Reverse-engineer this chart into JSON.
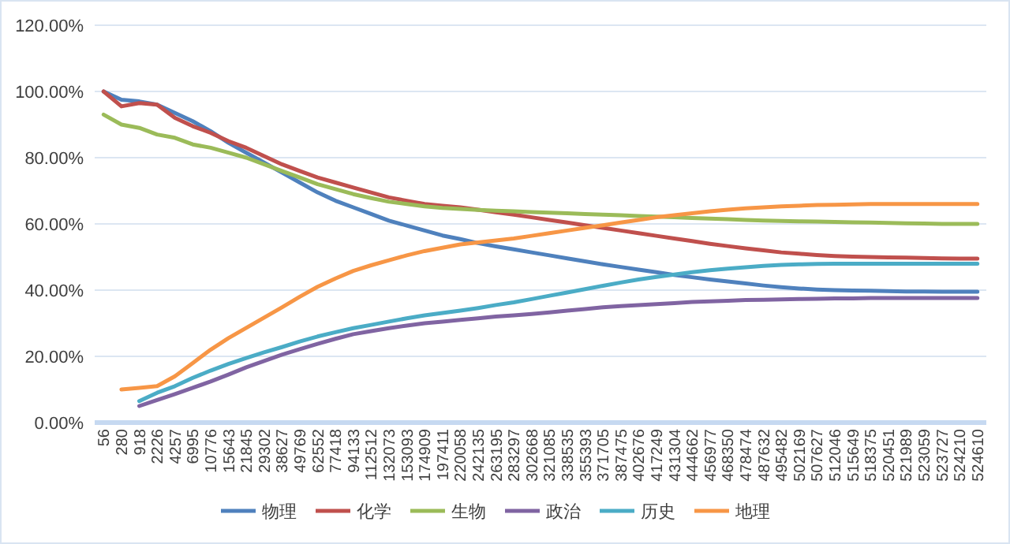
{
  "chart_data": {
    "type": "line",
    "categories": [
      "56",
      "280",
      "918",
      "2226",
      "4257",
      "6995",
      "10776",
      "15643",
      "21845",
      "29302",
      "38627",
      "49769",
      "62552",
      "77418",
      "94133",
      "112512",
      "132073",
      "153093",
      "174909",
      "197411",
      "220058",
      "242135",
      "263195",
      "283297",
      "302668",
      "321085",
      "338535",
      "355393",
      "371705",
      "387475",
      "402676",
      "417249",
      "431304",
      "444662",
      "456977",
      "468350",
      "478474",
      "487632",
      "495482",
      "502169",
      "507627",
      "512046",
      "515649",
      "518375",
      "520451",
      "521989",
      "523059",
      "523727",
      "524210",
      "524610"
    ],
    "series": [
      {
        "name": "物理",
        "color": "#4f81bd",
        "values": [
          100,
          97.5,
          97,
          96,
          93.5,
          91,
          88,
          84.5,
          81.5,
          78.5,
          75.5,
          72.5,
          69.5,
          67,
          65,
          63,
          61,
          59.5,
          58,
          56.5,
          55.4,
          54.2,
          53.2,
          52.3,
          51.4,
          50.5,
          49.6,
          48.7,
          47.8,
          47,
          46.2,
          45.4,
          44.6,
          43.9,
          43.2,
          42.6,
          42,
          41.4,
          40.9,
          40.5,
          40.2,
          40,
          39.9,
          39.8,
          39.7,
          39.6,
          39.6,
          39.5,
          39.5,
          39.5
        ]
      },
      {
        "name": "化学",
        "color": "#c0504d",
        "values": [
          100,
          95.5,
          96.5,
          96,
          92,
          89.5,
          87.5,
          85,
          83,
          80.5,
          78,
          76,
          74,
          72.5,
          71,
          69.5,
          68,
          67,
          66,
          65.5,
          65,
          64.3,
          63.5,
          62.8,
          62,
          61.2,
          60.4,
          59.6,
          58.8,
          58,
          57.2,
          56.4,
          55.6,
          54.8,
          54,
          53.3,
          52.6,
          52,
          51.4,
          51,
          50.6,
          50.3,
          50.1,
          50,
          49.9,
          49.8,
          49.7,
          49.6,
          49.5,
          49.5
        ]
      },
      {
        "name": "生物",
        "color": "#9bbb59",
        "values": [
          93,
          90,
          89,
          87,
          86,
          84,
          83,
          81.5,
          80,
          78,
          76,
          74,
          72,
          70.5,
          69,
          67.8,
          66.7,
          66,
          65.3,
          64.8,
          64.5,
          64.2,
          64,
          63.8,
          63.6,
          63.4,
          63.2,
          63,
          62.8,
          62.6,
          62.4,
          62.2,
          62,
          61.8,
          61.6,
          61.4,
          61.2,
          61,
          60.9,
          60.8,
          60.7,
          60.6,
          60.5,
          60.4,
          60.3,
          60.2,
          60.1,
          60,
          60,
          60
        ]
      },
      {
        "name": "政治",
        "color": "#8064a2",
        "values": [
          null,
          null,
          5,
          6.8,
          8.6,
          10.5,
          12.4,
          14.5,
          16.7,
          18.6,
          20.5,
          22.2,
          23.8,
          25.3,
          26.7,
          27.6,
          28.5,
          29.3,
          30,
          30.5,
          31,
          31.5,
          32,
          32.4,
          32.8,
          33.3,
          33.8,
          34.3,
          34.8,
          35.2,
          35.5,
          35.8,
          36.1,
          36.4,
          36.6,
          36.8,
          37,
          37.1,
          37.2,
          37.3,
          37.4,
          37.5,
          37.5,
          37.6,
          37.6,
          37.6,
          37.6,
          37.6,
          37.6,
          37.6
        ]
      },
      {
        "name": "历史",
        "color": "#4bacc6",
        "values": [
          null,
          null,
          6.5,
          9,
          11,
          13.5,
          15.7,
          17.7,
          19.5,
          21.2,
          22.8,
          24.5,
          26,
          27.3,
          28.5,
          29.5,
          30.5,
          31.5,
          32.4,
          33.1,
          33.8,
          34.6,
          35.5,
          36.3,
          37.3,
          38.3,
          39.3,
          40.3,
          41.3,
          42.3,
          43.2,
          44,
          44.7,
          45.4,
          46,
          46.5,
          46.9,
          47.3,
          47.6,
          47.8,
          47.9,
          48,
          48,
          48,
          48,
          48,
          48,
          48,
          48,
          48
        ]
      },
      {
        "name": "地理",
        "color": "#f79646",
        "values": [
          null,
          10,
          10.5,
          11,
          14,
          18,
          22,
          25.5,
          28.6,
          31.7,
          34.8,
          38,
          41,
          43.5,
          45.8,
          47.5,
          49,
          50.5,
          51.8,
          52.8,
          53.8,
          54.4,
          55,
          55.6,
          56.4,
          57.2,
          58,
          58.8,
          59.6,
          60.4,
          61.2,
          62,
          62.6,
          63.2,
          63.8,
          64.3,
          64.7,
          65,
          65.3,
          65.5,
          65.7,
          65.8,
          65.9,
          66,
          66,
          66,
          66,
          66,
          66,
          66
        ]
      }
    ],
    "ylim": [
      0,
      120
    ],
    "yticks": [
      {
        "value": 0,
        "label": "0.00%"
      },
      {
        "value": 20,
        "label": "20.00%"
      },
      {
        "value": 40,
        "label": "40.00%"
      },
      {
        "value": 60,
        "label": "60.00%"
      },
      {
        "value": 80,
        "label": "80.00%"
      },
      {
        "value": 100,
        "label": "100.00%"
      },
      {
        "value": 120,
        "label": "120.00%"
      }
    ],
    "grid": "y",
    "legend": "bottom",
    "marker": "none",
    "line_style": "solid"
  }
}
